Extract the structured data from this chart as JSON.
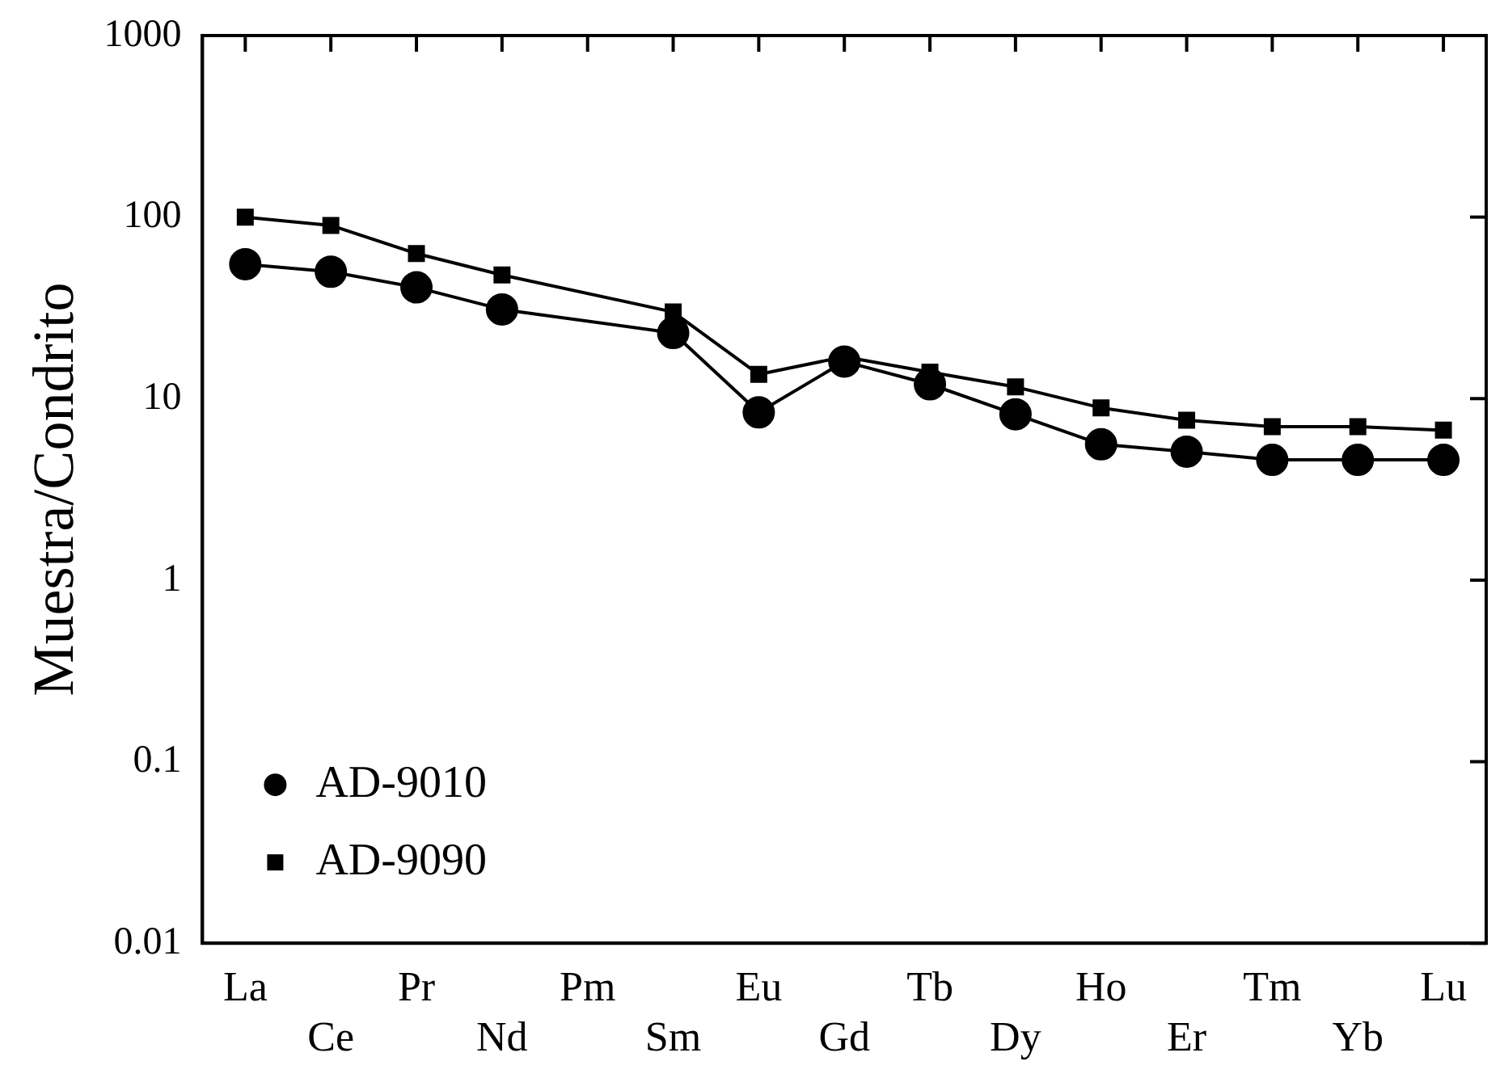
{
  "chart_data": {
    "type": "line",
    "ylabel": "Muestra/Condrito",
    "log": true,
    "ylim": [
      0.01,
      1000
    ],
    "yticks": [
      0.01,
      0.1,
      1,
      10,
      100,
      1000
    ],
    "grid": false,
    "legend": "bottom left",
    "line_style": "solid",
    "categories": [
      "La",
      "Ce",
      "Pr",
      "Nd",
      "Pm",
      "Sm",
      "Eu",
      "Gd",
      "Tb",
      "Dy",
      "Ho",
      "Er",
      "Tm",
      "Yb",
      "Lu"
    ],
    "series": [
      {
        "name": "AD-9010",
        "color": "#000000",
        "marker": "circle",
        "values": [
          55,
          50,
          41,
          31,
          null,
          23,
          8.4,
          16,
          12,
          8.2,
          5.6,
          5.1,
          4.6,
          4.6,
          4.6
        ]
      },
      {
        "name": "AD-9090",
        "color": "#000000",
        "marker": "square",
        "values": [
          100,
          90,
          63,
          48,
          null,
          30,
          13.6,
          17,
          14,
          11.6,
          8.9,
          7.6,
          7.0,
          7.0,
          6.7
        ]
      }
    ]
  }
}
